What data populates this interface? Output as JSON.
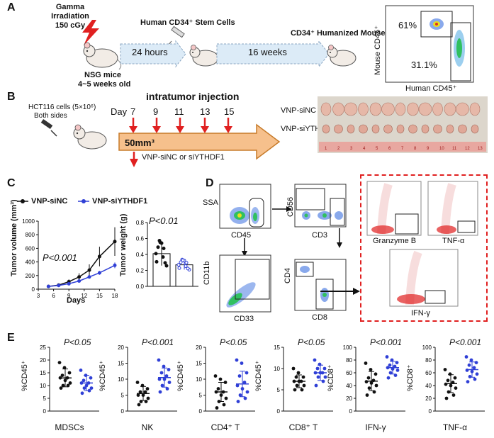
{
  "panels": {
    "A": "A",
    "B": "B",
    "C": "C",
    "D": "D",
    "E": "E"
  },
  "panelA": {
    "gamma": [
      "Gamma",
      "Irradiation",
      "150 cGy"
    ],
    "nsg": [
      "NSG mice",
      "4~5 weeks old"
    ],
    "cd34_title": "Human CD34⁺ Stem Cells",
    "time1": "24 hours",
    "time2": "16 weeks",
    "humanized": "CD34⁺ Humanized Mouse",
    "flow": {
      "ylabel": "Mouse CD45⁺",
      "xlabel": "Human CD45⁺",
      "pct_top": "61%",
      "pct_bottom": "31.1%"
    }
  },
  "panelB": {
    "hct": "HCT116 cells (5×10⁶)",
    "sides": "Both sides",
    "title": "intratumor injection",
    "day_label": "Day",
    "days": [
      "7",
      "9",
      "11",
      "13",
      "15"
    ],
    "volume": "50mm³",
    "treatment": "VNP-siNC or siYTHDF1",
    "photo_labels": [
      "VNP-siNC",
      "VNP-siYTHDF1"
    ],
    "ruler": [
      "1",
      "2",
      "3",
      "4",
      "5",
      "6",
      "7",
      "8",
      "9",
      "10",
      "11",
      "12",
      "13"
    ]
  },
  "panelC": {
    "legend": [
      "VNP-siNC",
      "VNP-siYTHDF1"
    ],
    "line_chart": {
      "ylabel": "Tumor volume (mm³)",
      "xlabel": "Days",
      "yticks": [
        "0",
        "200",
        "400",
        "600",
        "800",
        "1000"
      ],
      "xticks": [
        "3",
        "6",
        "9",
        "12",
        "15",
        "18"
      ],
      "pval": "P<0.001"
    },
    "bar_chart": {
      "ylabel": "Tumor weight (g)",
      "yticks": [
        "0.0",
        "0.2",
        "0.4",
        "0.6",
        "0.8"
      ],
      "pval": "P<0.01"
    }
  },
  "panelD": {
    "ssa": "SSA",
    "cd45": "CD45",
    "cd56": "CD56",
    "cd3": "CD3",
    "cd11b": "CD11b",
    "cd33": "CD33",
    "cd4": "CD4",
    "cd8": "CD8",
    "gzmb": "Granzyme B",
    "tnf": "TNF-α",
    "ifn": "IFN-γ"
  },
  "panelE": [
    {
      "ylabel": "%CD45⁺",
      "xlabel": "MDSCs",
      "pval": "P<0.05",
      "yticks": [
        "0",
        "5",
        "10",
        "15",
        "20",
        "25"
      ]
    },
    {
      "ylabel": "%CD45⁺",
      "xlabel": "NK",
      "pval": "P<0.001",
      "yticks": [
        "0",
        "5",
        "10",
        "15",
        "20"
      ]
    },
    {
      "ylabel": "%CD45⁺",
      "xlabel": "CD4⁺ T",
      "pval": "P<0.05",
      "yticks": [
        "0",
        "5",
        "10",
        "15",
        "20"
      ]
    },
    {
      "ylabel": "%CD45⁺",
      "xlabel": "CD8⁺ T",
      "pval": "P<0.05",
      "yticks": [
        "0",
        "5",
        "10",
        "15"
      ]
    },
    {
      "ylabel": "%CD8⁺",
      "xlabel": "IFN-γ",
      "pval": "P<0.001",
      "yticks": [
        "0",
        "20",
        "40",
        "60",
        "80",
        "100"
      ]
    },
    {
      "ylabel": "%CD8⁺",
      "xlabel": "TNF-α",
      "pval": "P<0.001",
      "yticks": [
        "0",
        "20",
        "40",
        "60",
        "80",
        "100"
      ]
    }
  ],
  "chart_data": [
    {
      "type": "line",
      "x": [
        5,
        7,
        9,
        11,
        13,
        15,
        18
      ],
      "series": [
        {
          "name": "VNP-siNC",
          "color": "#111111",
          "values": [
            40,
            60,
            110,
            180,
            280,
            480,
            700
          ]
        },
        {
          "name": "VNP-siYTHDF1",
          "color": "#2f3fd6",
          "values": [
            40,
            55,
            80,
            120,
            180,
            240,
            350
          ]
        }
      ],
      "xlabel": "Days",
      "ylabel": "Tumor volume (mm³)",
      "xlim": [
        3,
        18
      ],
      "ylim": [
        0,
        1000
      ]
    },
    {
      "type": "bar",
      "categories": [
        "VNP-siNC",
        "VNP-siYTHDF1"
      ],
      "values": [
        0.41,
        0.27
      ],
      "ylabel": "Tumor weight (g)",
      "ylim": [
        0,
        0.8
      ]
    },
    {
      "type": "scatter",
      "xlabel": "MDSCs",
      "ylabel": "%CD45⁺",
      "ylim": [
        0,
        25
      ],
      "series": [
        {
          "name": "VNP-siNC",
          "mean": 13,
          "sd": 3.5,
          "values": [
            19,
            17,
            15,
            14,
            13,
            13,
            12,
            11,
            10,
            10,
            9
          ]
        },
        {
          "name": "VNP-siYTHDF1",
          "mean": 11,
          "sd": 3,
          "values": [
            16,
            14,
            13,
            12,
            11,
            11,
            10,
            9,
            9,
            8,
            7
          ]
        }
      ]
    },
    {
      "type": "scatter",
      "xlabel": "NK",
      "ylabel": "%CD45⁺",
      "ylim": [
        0,
        20
      ],
      "series": [
        {
          "name": "VNP-siNC",
          "mean": 5.5,
          "sd": 2.2,
          "values": [
            9,
            8,
            7,
            6,
            6,
            5,
            5,
            4,
            3,
            3,
            2
          ]
        },
        {
          "name": "VNP-siYTHDF1",
          "mean": 10.5,
          "sd": 3,
          "values": [
            16,
            14,
            13,
            12,
            11,
            10,
            10,
            9,
            8,
            7,
            6
          ]
        }
      ]
    },
    {
      "type": "scatter",
      "xlabel": "CD4⁺ T",
      "ylabel": "%CD45⁺",
      "ylim": [
        0,
        20
      ],
      "series": [
        {
          "name": "VNP-siNC",
          "mean": 6,
          "sd": 3,
          "values": [
            11,
            10,
            9,
            7,
            6,
            6,
            5,
            4,
            3,
            2,
            1
          ]
        },
        {
          "name": "VNP-siYTHDF1",
          "mean": 8.5,
          "sd": 4,
          "values": [
            16,
            15,
            12,
            11,
            9,
            8,
            7,
            6,
            5,
            4,
            3
          ]
        }
      ]
    },
    {
      "type": "scatter",
      "xlabel": "CD8⁺ T",
      "ylabel": "%CD45⁺",
      "ylim": [
        0,
        15
      ],
      "series": [
        {
          "name": "VNP-siNC",
          "mean": 7,
          "sd": 1.5,
          "values": [
            10,
            9,
            8,
            8,
            7,
            7,
            7,
            6,
            6,
            5,
            5
          ]
        },
        {
          "name": "VNP-siYTHDF1",
          "mean": 9,
          "sd": 1.8,
          "values": [
            12,
            11,
            10,
            10,
            9,
            9,
            9,
            8,
            8,
            7,
            6
          ]
        }
      ]
    },
    {
      "type": "scatter",
      "xlabel": "IFN-γ",
      "ylabel": "%CD8⁺",
      "ylim": [
        0,
        100
      ],
      "series": [
        {
          "name": "VNP-siNC",
          "mean": 47,
          "sd": 15,
          "values": [
            75,
            65,
            58,
            52,
            48,
            46,
            44,
            40,
            36,
            30,
            25
          ]
        },
        {
          "name": "VNP-siYTHDF1",
          "mean": 68,
          "sd": 10,
          "values": [
            85,
            80,
            76,
            72,
            70,
            68,
            66,
            64,
            60,
            56,
            52
          ]
        }
      ]
    },
    {
      "type": "scatter",
      "xlabel": "TNF-α",
      "ylabel": "%CD8⁺",
      "ylim": [
        0,
        100
      ],
      "series": [
        {
          "name": "VNP-siNC",
          "mean": 43,
          "sd": 14,
          "values": [
            65,
            58,
            52,
            48,
            45,
            42,
            40,
            36,
            30,
            25,
            20
          ]
        },
        {
          "name": "VNP-siYTHDF1",
          "mean": 65,
          "sd": 12,
          "values": [
            85,
            80,
            76,
            72,
            68,
            64,
            62,
            58,
            54,
            50,
            46
          ]
        }
      ]
    }
  ],
  "colors": {
    "blue": "#2f3fd6",
    "red": "#e02020",
    "arrow": "#f6c08c",
    "arrow_edge": "#c77b2a",
    "dash": "#e02020"
  }
}
